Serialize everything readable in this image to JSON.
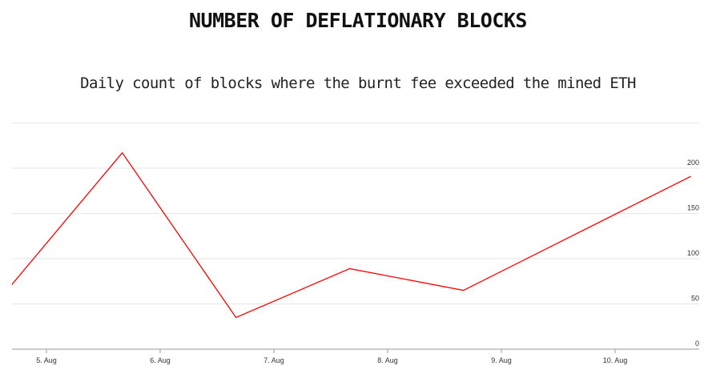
{
  "header": {
    "title": "NUMBER OF DEFLATIONARY BLOCKS",
    "subtitle": "Daily count of blocks where the burnt fee exceeded the mined ETH"
  },
  "colors": {
    "line": "#ff0000",
    "grid": "#e6e6e6",
    "axis": "#999999"
  },
  "chart_data": {
    "type": "line",
    "title": "NUMBER OF DEFLATIONARY BLOCKS",
    "subtitle": "Daily count of blocks where the burnt fee exceeded the mined ETH",
    "xlabel": "",
    "ylabel": "",
    "x_tick_labels": [
      "5. Aug",
      "6. Aug",
      "7. Aug",
      "8. Aug",
      "9. Aug",
      "10. Aug"
    ],
    "y_tick_labels": [
      "0",
      "50",
      "100",
      "150",
      "200"
    ],
    "ylim": [
      0,
      250
    ],
    "y_axis_side": "right",
    "grid": true,
    "legend": "none",
    "series": [
      {
        "x": [
          "2021-08-04 16:00",
          "2021-08-05 16:00",
          "2021-08-06 16:00",
          "2021-08-07 16:00",
          "2021-08-08 16:00",
          "2021-08-10 16:00"
        ],
        "values": [
          67,
          217,
          35,
          89,
          65,
          191
        ],
        "color": "#ff0000"
      }
    ]
  }
}
